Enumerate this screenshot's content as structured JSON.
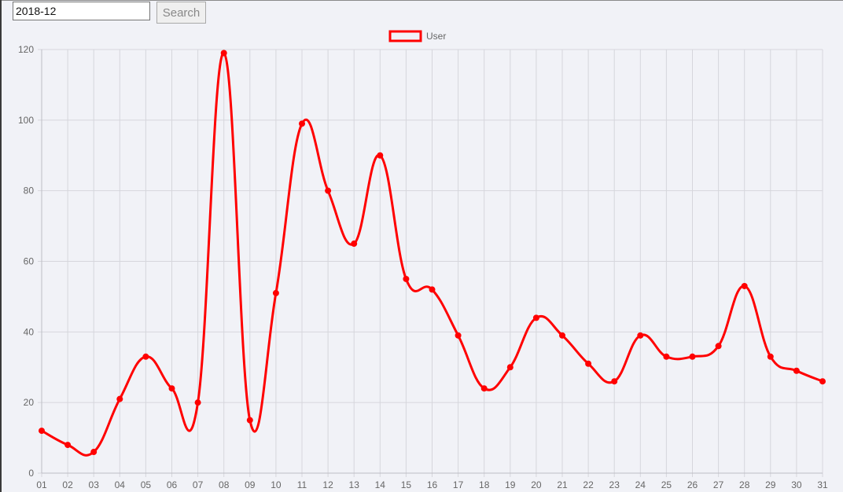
{
  "search": {
    "value": "2018-12",
    "button_label": "Search"
  },
  "colors": {
    "series": "#ff0000",
    "grid": "#d6d6dc",
    "axis_text": "#666666"
  },
  "chart_data": {
    "type": "line",
    "title": "",
    "xlabel": "",
    "ylabel": "",
    "legend_position": "top",
    "grid": true,
    "ylim": [
      0,
      120
    ],
    "yticks": [
      "0",
      "20",
      "40",
      "60",
      "80",
      "100",
      "120"
    ],
    "categories": [
      "01",
      "02",
      "03",
      "04",
      "05",
      "06",
      "07",
      "08",
      "09",
      "10",
      "11",
      "12",
      "13",
      "14",
      "15",
      "16",
      "17",
      "18",
      "19",
      "20",
      "21",
      "22",
      "23",
      "24",
      "25",
      "26",
      "27",
      "28",
      "29",
      "30",
      "31"
    ],
    "series": [
      {
        "name": "User",
        "values": [
          12,
          8,
          6,
          21,
          33,
          24,
          20,
          119,
          15,
          51,
          99,
          80,
          65,
          90,
          55,
          52,
          39,
          24,
          30,
          44,
          39,
          31,
          26,
          39,
          33,
          33,
          36,
          53,
          33,
          29,
          26
        ]
      }
    ]
  }
}
